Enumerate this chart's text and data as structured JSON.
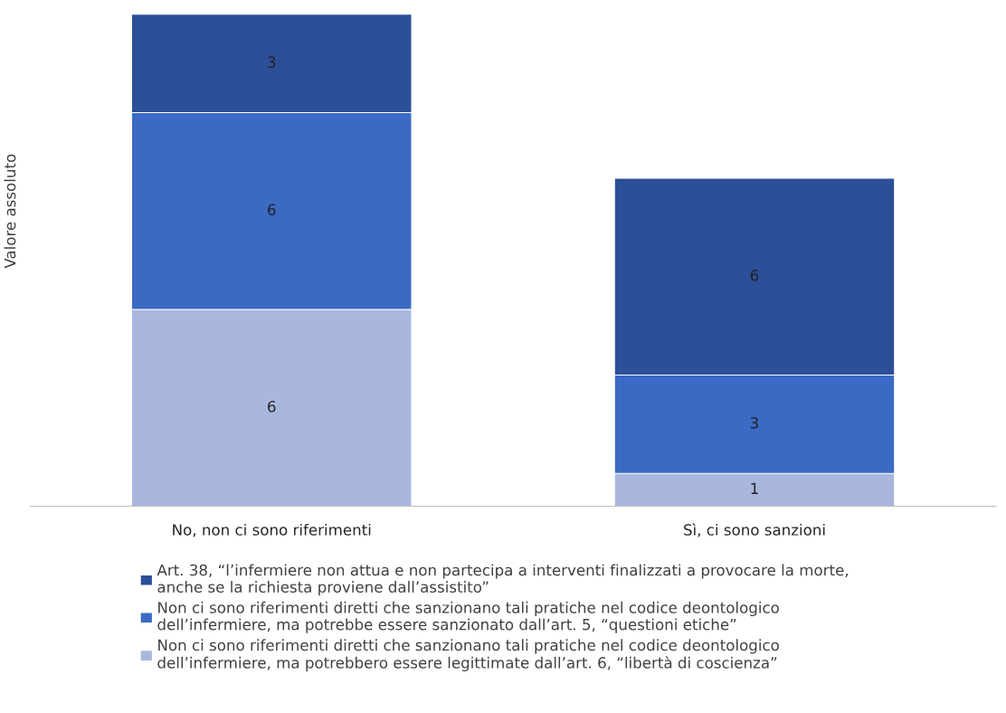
{
  "chart_data": {
    "type": "bar",
    "ylabel": "Valore assoluto",
    "categories": [
      "No, non ci sono riferimenti",
      "Sì, ci sono sanzioni"
    ],
    "stacked": true,
    "data_labels": true,
    "legend": "bottom",
    "tick_labels": "x",
    "series": [
      {
        "name": "Non ci sono riferimenti diretti che sanzionano tali pratiche nel codice deontologico\ndell’infermiere, ma potrebbero essere legittimate dall’art. 6, “libertà di coscienza”",
        "color": "#a9b6de",
        "values": [
          6,
          1
        ]
      },
      {
        "name": "Non ci sono riferimenti diretti che sanzionano tali pratiche nel codice deontologico\ndell’infermiere, ma potrebbe essere sanzionato dall’art. 5, “questioni etiche”",
        "color": "#3b6ac4",
        "values": [
          6,
          3
        ]
      },
      {
        "name": "Art. 38, “l’infermiere non attua e non partecipa a interventi finalizzati a provocare la morte,\nanche se la richiesta proviene dall’assistito”",
        "color": "#2d4f98",
        "values": [
          3,
          6
        ]
      }
    ]
  }
}
